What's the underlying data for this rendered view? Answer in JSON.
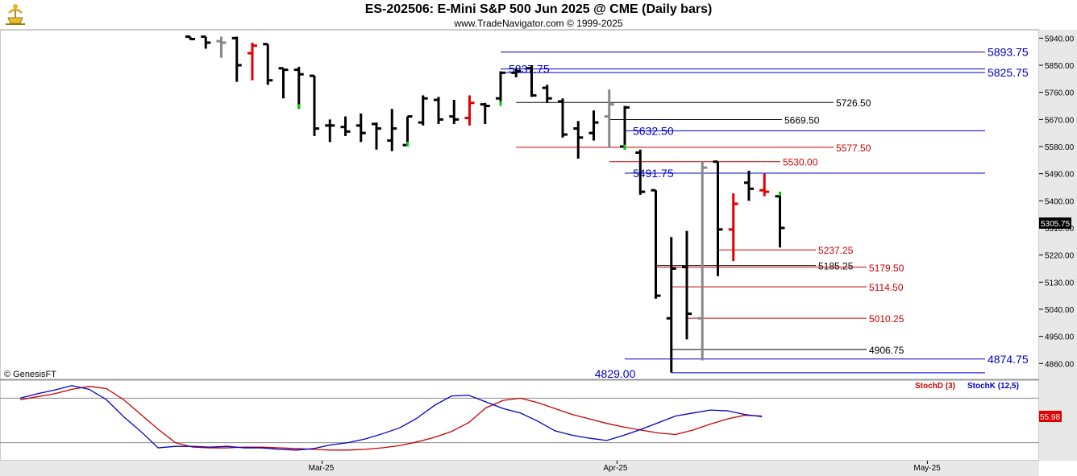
{
  "header": {
    "title": "ES-202506:  E-Mini S&P 500 Jun 2025 @ CME  (Daily bars)",
    "subtitle": "www.TradeNavigator.com © 1999-2025",
    "logo_icon": "trade-navigator-logo-icon"
  },
  "copyright_label": "© GenesisFT",
  "chart_data": [
    {
      "type": "ohlc",
      "ylim": [
        4810,
        5965
      ],
      "y_ticks": [
        "5940.00",
        "5850.00",
        "5760.00",
        "5670.00",
        "5580.00",
        "5490.00",
        "5400.00",
        "5310.00",
        "5220.00",
        "5130.00",
        "5040.00",
        "4950.00",
        "4860.00"
      ],
      "x_tick_labels": [
        {
          "label": "Mar-25",
          "bar": 8.5
        },
        {
          "label": "Apr-25",
          "bar": 27.5
        },
        {
          "label": "May-25",
          "bar": 47.5
        }
      ],
      "last_price_label": "5305.75",
      "colors": {
        "up": "#000000",
        "down": "#000000",
        "highlight_red": "#e00000",
        "highlight_green": "#00cc00",
        "gray": "#888888"
      },
      "bars": [
        {
          "o": 5945,
          "h": 5945,
          "l": 5935,
          "c": 5937
        },
        {
          "o": 5945,
          "h": 5945,
          "l": 5905,
          "c": 5925
        },
        {
          "o": 5930,
          "h": 5945,
          "l": 5875,
          "c": 5925,
          "color": "gray"
        },
        {
          "o": 5940,
          "h": 5945,
          "l": 5795,
          "c": 5850
        },
        {
          "o": 5890,
          "h": 5925,
          "l": 5800,
          "c": 5915,
          "color": "red"
        },
        {
          "o": 5920,
          "h": 5920,
          "l": 5785,
          "c": 5800
        },
        {
          "o": 5840,
          "h": 5840,
          "l": 5740,
          "c": 5835
        },
        {
          "o": 5835,
          "h": 5845,
          "l": 5705,
          "c": 5820,
          "color": "green"
        },
        {
          "o": 5815,
          "h": 5815,
          "l": 5615,
          "c": 5640
        },
        {
          "o": 5650,
          "h": 5670,
          "l": 5595,
          "c": 5650
        },
        {
          "o": 5645,
          "h": 5680,
          "l": 5615,
          "c": 5630
        },
        {
          "o": 5650,
          "h": 5690,
          "l": 5595,
          "c": 5625
        },
        {
          "o": 5655,
          "h": 5660,
          "l": 5570,
          "c": 5640
        },
        {
          "o": 5600,
          "h": 5705,
          "l": 5565,
          "c": 5640
        },
        {
          "o": 5585,
          "h": 5680,
          "l": 5580,
          "c": 5680,
          "color": "green"
        },
        {
          "o": 5660,
          "h": 5750,
          "l": 5650,
          "c": 5740
        },
        {
          "o": 5735,
          "h": 5745,
          "l": 5655,
          "c": 5670
        },
        {
          "o": 5680,
          "h": 5735,
          "l": 5655,
          "c": 5670
        },
        {
          "o": 5675,
          "h": 5750,
          "l": 5650,
          "c": 5725,
          "color": "red"
        },
        {
          "o": 5720,
          "h": 5725,
          "l": 5655,
          "c": 5715
        },
        {
          "o": 5740,
          "h": 5830,
          "l": 5715,
          "c": 5825,
          "color": "green"
        },
        {
          "o": 5825,
          "h": 5840,
          "l": 5810,
          "c": 5830
        },
        {
          "o": 5840,
          "h": 5850,
          "l": 5745,
          "c": 5750
        },
        {
          "o": 5775,
          "h": 5785,
          "l": 5725,
          "c": 5740
        },
        {
          "o": 5730,
          "h": 5740,
          "l": 5610,
          "c": 5620
        },
        {
          "o": 5640,
          "h": 5665,
          "l": 5540,
          "c": 5610
        },
        {
          "o": 5625,
          "h": 5700,
          "l": 5600,
          "c": 5660
        },
        {
          "o": 5680,
          "h": 5770,
          "l": 5575,
          "c": 5720,
          "color": "gray"
        },
        {
          "o": 5580,
          "h": 5715,
          "l": 5570,
          "c": 5710,
          "color": "green"
        },
        {
          "o": 5560,
          "h": 5570,
          "l": 5420,
          "c": 5430
        },
        {
          "o": 5435,
          "h": 5435,
          "l": 5075,
          "c": 5085
        },
        {
          "o": 5010,
          "h": 5280,
          "l": 4830,
          "c": 5175
        },
        {
          "o": 5180,
          "h": 5300,
          "l": 4940,
          "c": 5025
        },
        {
          "o": 5010,
          "h": 5530,
          "l": 4870,
          "c": 5510,
          "color": "gray"
        },
        {
          "o": 5530,
          "h": 5530,
          "l": 5150,
          "c": 5305
        },
        {
          "o": 5305,
          "h": 5425,
          "l": 5200,
          "c": 5390,
          "color": "red"
        },
        {
          "o": 5460,
          "h": 5500,
          "l": 5400,
          "c": 5440
        },
        {
          "o": 5435,
          "h": 5490,
          "l": 5415,
          "c": 5430,
          "color": "red"
        },
        {
          "o": 5415,
          "h": 5430,
          "l": 5245,
          "c": 5310,
          "color": "green_top"
        }
      ],
      "levels": [
        {
          "label": "5893.75",
          "price": 5893.75,
          "color": "#0000cc",
          "x0_bar": 20,
          "label_side": "right_edge"
        },
        {
          "label": "5837.75",
          "price": 5837.75,
          "color": "#0000cc",
          "x0_bar": 20,
          "label_side": "left"
        },
        {
          "label": "5825.75",
          "price": 5825.75,
          "color": "#0000cc",
          "x0_bar": 20,
          "label_side": "right_edge"
        },
        {
          "label": "5726.50",
          "price": 5726.5,
          "color": "#000000",
          "x0_bar": 21,
          "label_side": "mid"
        },
        {
          "label": "5669.50",
          "price": 5669.5,
          "color": "#000000",
          "x0_bar": 27,
          "label_side": "mid"
        },
        {
          "label": "5632.50",
          "price": 5632.5,
          "color": "#0000cc",
          "x0_bar": 28,
          "label_side": "left"
        },
        {
          "label": "5577.50",
          "price": 5577.5,
          "color": "#cc0000",
          "x0_bar": 21,
          "label_side": "mid"
        },
        {
          "label": "5530.00",
          "price": 5530.0,
          "color": "#cc0000",
          "x0_bar": 27,
          "label_side": "mid"
        },
        {
          "label": "5491.75",
          "price": 5491.75,
          "color": "#0000cc",
          "x0_bar": 28,
          "label_side": "left"
        },
        {
          "label": "5237.25",
          "price": 5237.25,
          "color": "#cc0000",
          "x0_bar": 34,
          "label_side": "mid"
        },
        {
          "label": "5185.25",
          "price": 5185.25,
          "color": "#000000",
          "x0_bar": 30,
          "label_side": "mid"
        },
        {
          "label": "5179.50",
          "price": 5179.5,
          "color": "#cc0000",
          "x0_bar": 30,
          "label_side": "mid2"
        },
        {
          "label": "5114.50",
          "price": 5114.5,
          "color": "#cc0000",
          "x0_bar": 31,
          "label_side": "mid2"
        },
        {
          "label": "5010.25",
          "price": 5010.25,
          "color": "#cc0000",
          "x0_bar": 32,
          "label_side": "mid2"
        },
        {
          "label": "4906.75",
          "price": 4906.75,
          "color": "#000000",
          "x0_bar": 31,
          "label_side": "mid2"
        },
        {
          "label": "4874.75",
          "price": 4874.75,
          "color": "#0000cc",
          "x0_bar": 28,
          "label_side": "right_edge"
        },
        {
          "label": "4829.00",
          "price": 4829.0,
          "color": "#0000cc",
          "x0_bar": 31,
          "label_side": "left"
        }
      ]
    },
    {
      "type": "line",
      "ylim": [
        0,
        100
      ],
      "legend": [
        {
          "name": "StochD (3)",
          "color": "#cc0000"
        },
        {
          "name": "StochK (12,5)",
          "color": "#0000cc"
        }
      ],
      "last_value_label": "55.98",
      "reference_lines": [
        80,
        20
      ],
      "series": [
        {
          "name": "StochD (3)",
          "color": "#cc0000",
          "values": [
            78,
            82,
            86,
            92,
            96,
            93,
            78,
            58,
            38,
            20,
            14,
            13,
            13,
            14,
            14,
            13,
            12,
            11,
            10,
            10,
            11,
            13,
            16,
            21,
            27,
            35,
            47,
            67,
            77,
            80,
            74,
            66,
            58,
            52,
            46,
            41,
            37,
            33,
            31,
            37,
            45,
            52,
            57,
            56
          ]
        },
        {
          "name": "StochK (12,5)",
          "color": "#0000cc",
          "values": [
            80,
            86,
            91,
            97,
            92,
            78,
            55,
            35,
            13,
            15,
            15,
            14,
            15,
            13,
            13,
            11,
            10,
            12,
            17,
            20,
            25,
            32,
            40,
            53,
            70,
            83,
            84,
            75,
            66,
            60,
            49,
            36,
            30,
            26,
            23,
            30,
            38,
            47,
            56,
            60,
            64,
            63,
            58,
            55
          ]
        }
      ]
    }
  ]
}
